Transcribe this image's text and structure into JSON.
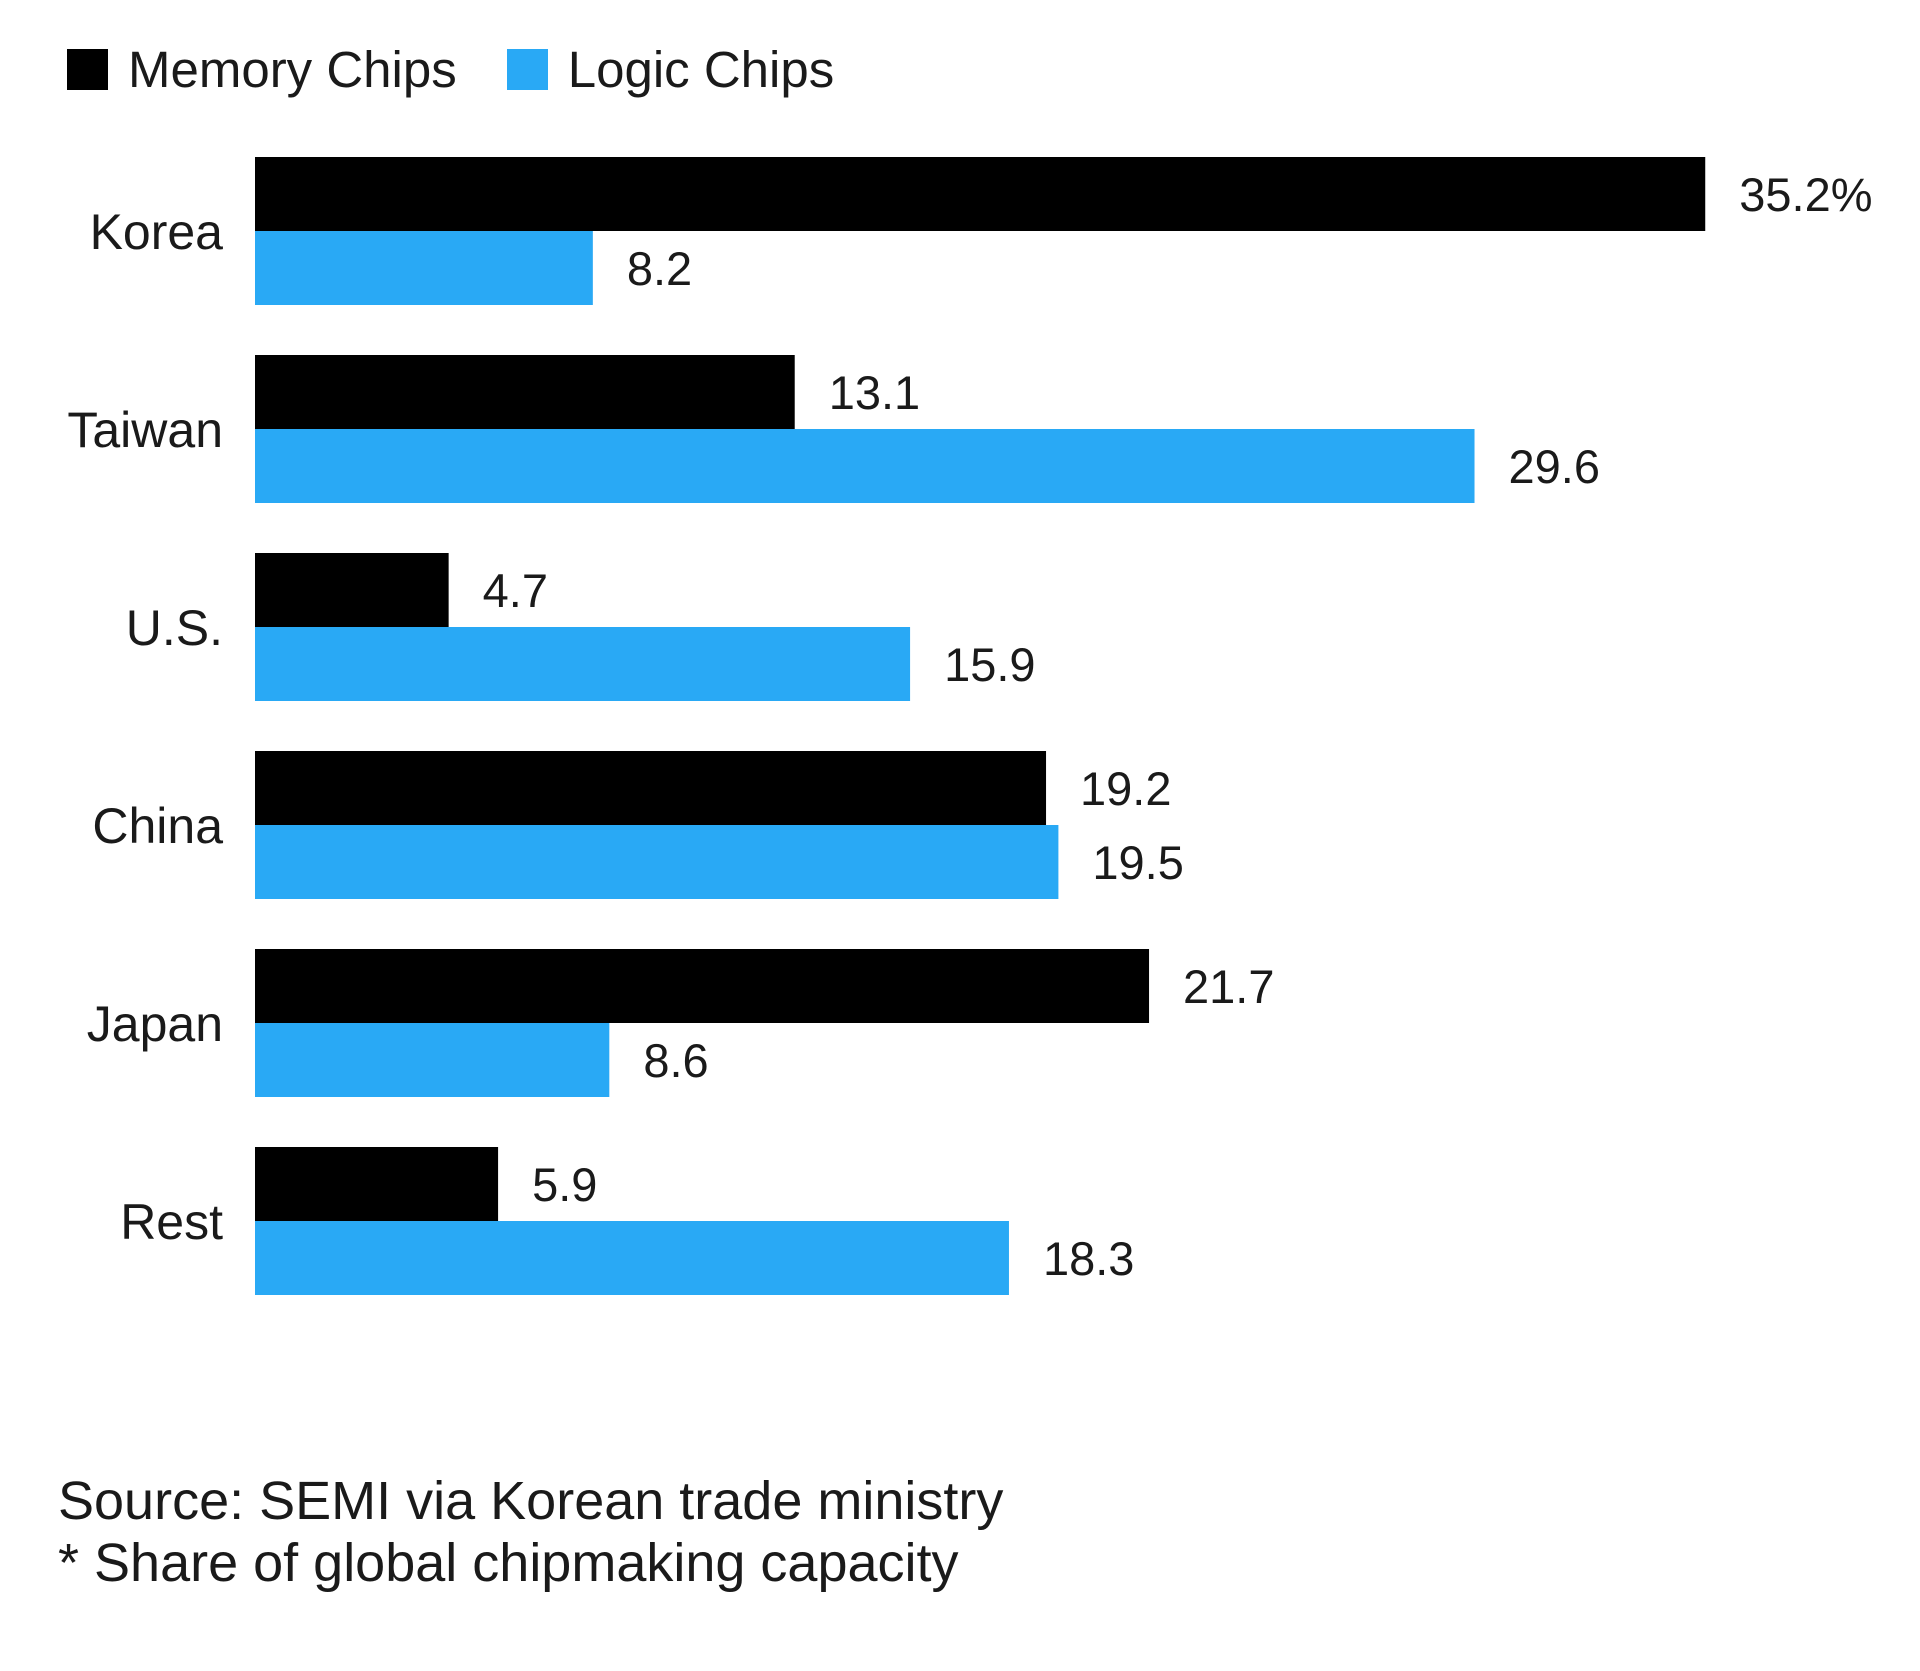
{
  "chart_data": {
    "type": "bar",
    "orientation": "horizontal",
    "title": "",
    "categories": [
      "Korea",
      "Taiwan",
      "U.S.",
      "China",
      "Japan",
      "Rest"
    ],
    "series": [
      {
        "name": "Memory Chips",
        "color": "#000000",
        "values": [
          35.2,
          13.1,
          4.7,
          19.2,
          21.7,
          5.9
        ],
        "labels": [
          "35.2%",
          "13.1",
          "4.7",
          "19.2",
          "21.7",
          "5.9"
        ]
      },
      {
        "name": "Logic Chips",
        "color": "#29a9f5",
        "values": [
          8.2,
          29.6,
          15.9,
          19.5,
          8.6,
          18.3
        ],
        "labels": [
          "8.2",
          "29.6",
          "15.9",
          "19.5",
          "8.6",
          "18.3"
        ]
      }
    ],
    "xlabel": "",
    "ylabel": "",
    "xlim": [
      0,
      36
    ],
    "grid": false,
    "legend": "top-left",
    "unit": "%"
  },
  "footer": {
    "source": "Source: SEMI via Korean trade ministry",
    "note": "* Share of global chipmaking capacity"
  }
}
